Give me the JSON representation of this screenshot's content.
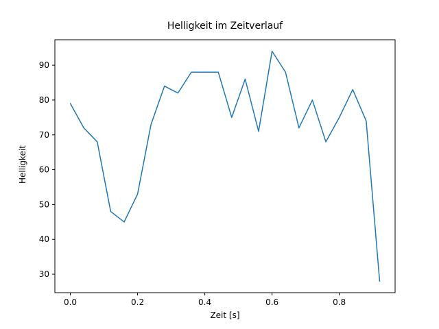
{
  "chart_data": {
    "type": "line",
    "title": "Helligkeit im Zeitverlauf",
    "xlabel": "Zeit [s]",
    "ylabel": "Helligkeit",
    "x": [
      0.0,
      0.04,
      0.08,
      0.12,
      0.16,
      0.2,
      0.24,
      0.28,
      0.32,
      0.36,
      0.4,
      0.44,
      0.48,
      0.52,
      0.56,
      0.6,
      0.64,
      0.68,
      0.72,
      0.76,
      0.8,
      0.84,
      0.88,
      0.92
    ],
    "y": [
      79,
      72,
      68,
      48,
      45,
      53,
      73,
      84,
      82,
      88,
      88,
      88,
      75,
      86,
      71,
      94,
      88,
      72,
      80,
      68,
      75,
      83,
      74,
      28
    ],
    "xlim": [
      -0.046,
      0.966
    ],
    "ylim": [
      24.7,
      97.3
    ],
    "xticks": [
      0.0,
      0.2,
      0.4,
      0.6,
      0.8
    ],
    "xtick_labels": [
      "0.0",
      "0.2",
      "0.4",
      "0.6",
      "0.8"
    ],
    "yticks": [
      30,
      40,
      50,
      60,
      70,
      80,
      90
    ],
    "ytick_labels": [
      "30",
      "40",
      "50",
      "60",
      "70",
      "80",
      "90"
    ],
    "line_color": "#1f77b4",
    "axis_color": "#000000",
    "background": "#ffffff",
    "grid": false,
    "legend": "none"
  }
}
